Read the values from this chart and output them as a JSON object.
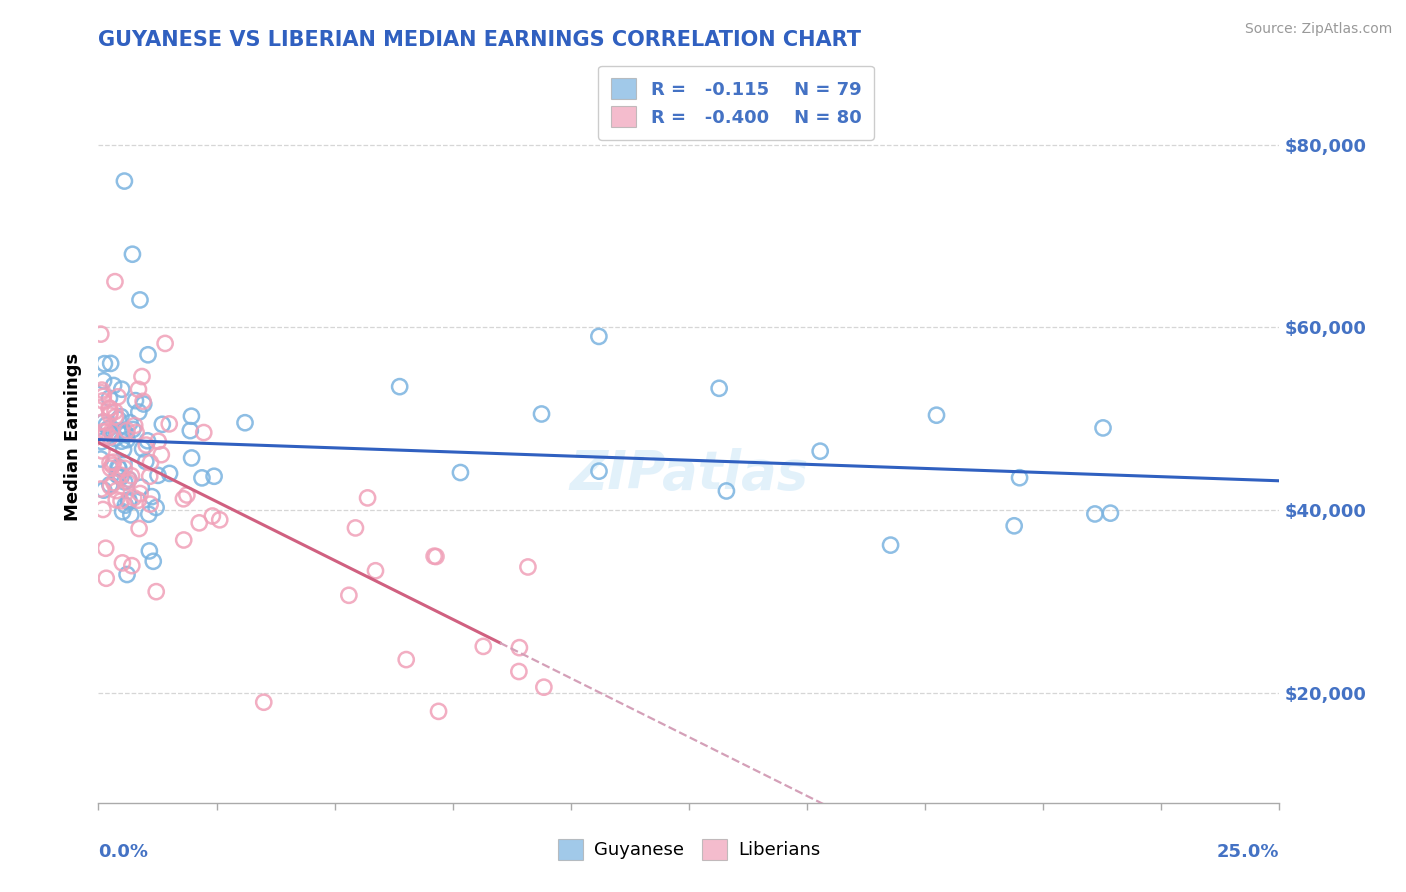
{
  "title": "GUYANESE VS LIBERIAN MEDIAN EARNINGS CORRELATION CHART",
  "source": "Source: ZipAtlas.com",
  "ylabel": "Median Earnings",
  "xlim": [
    0.0,
    25.0
  ],
  "ylim": [
    8000,
    88000
  ],
  "yticks": [
    20000,
    40000,
    60000,
    80000
  ],
  "ytick_labels": [
    "$20,000",
    "$40,000",
    "$60,000",
    "$80,000"
  ],
  "guyanese_color": "#7ab3e0",
  "liberian_color": "#f0a0b8",
  "guyanese_R": -0.115,
  "guyanese_N": 79,
  "liberian_R": -0.4,
  "liberian_N": 80,
  "trend_blue": "#3060c0",
  "trend_pink": "#d06080",
  "trend_pink_dash": "#d4a0b8",
  "title_color": "#3060c0",
  "axis_label_color": "#4472c4",
  "legend_r_color": "#4472c4",
  "background_color": "#ffffff"
}
